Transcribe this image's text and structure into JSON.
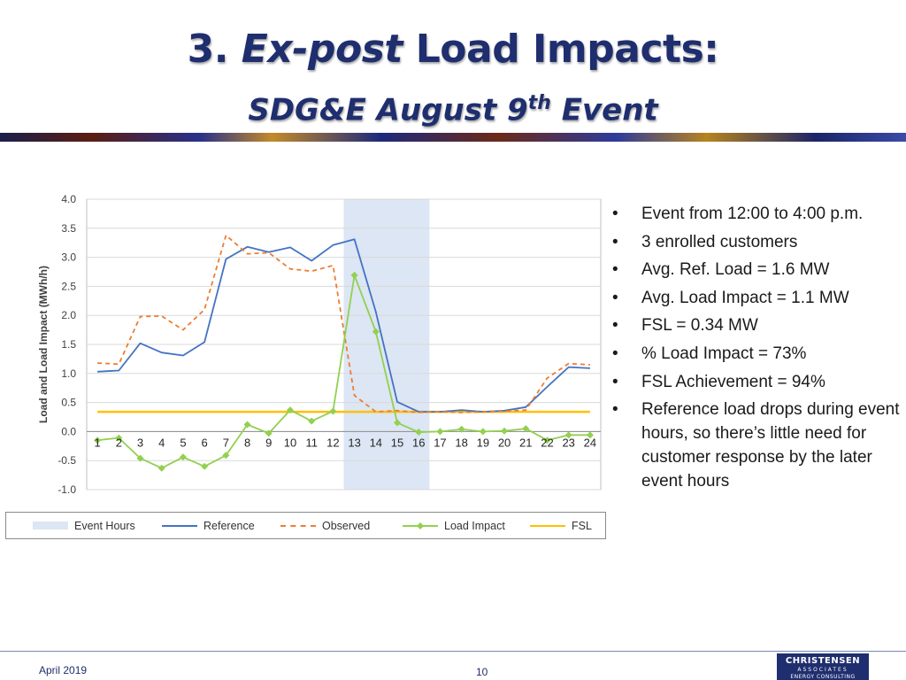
{
  "slide": {
    "title_prefix": "3. ",
    "title_em": "Ex-post",
    "title_suffix": " Load Impacts:",
    "subtitle_main": "SDG&E August 9",
    "subtitle_sup": "th",
    "subtitle_tail": " Event"
  },
  "bullets": [
    "Event from 12:00 to 4:00 p.m.",
    "3 enrolled customers",
    "Avg. Ref. Load = 1.6 MW",
    "Avg. Load Impact = 1.1 MW",
    "FSL = 0.34 MW",
    "% Load Impact = 73%",
    "FSL Achievement = 94%",
    "Reference load drops during event hours, so there’s little need for customer response by the later event hours"
  ],
  "bullet_glyph": "•",
  "footer": {
    "date": "April 2019",
    "page": "10",
    "logo_line1": "CHRISTENSEN",
    "logo_line2": "ASSOCIATES",
    "logo_line3": "ENERGY CONSULTING"
  },
  "chart_data": {
    "type": "line",
    "ylabel": "Load and Load Impact (MWh/h)",
    "xlabel": "",
    "ylim": [
      -1.0,
      4.0
    ],
    "yticks": [
      -1.0,
      -0.5,
      0.0,
      0.5,
      1.0,
      1.5,
      2.0,
      2.5,
      3.0,
      3.5,
      4.0
    ],
    "ytick_labels": [
      "-1.0",
      "-0.5",
      "0.0",
      "0.5",
      "1.0",
      "1.5",
      "2.0",
      "2.5",
      "3.0",
      "3.5",
      "4.0"
    ],
    "categories": [
      "1",
      "2",
      "3",
      "4",
      "5",
      "6",
      "7",
      "8",
      "9",
      "10",
      "11",
      "12",
      "13",
      "14",
      "15",
      "16",
      "17",
      "18",
      "19",
      "20",
      "21",
      "22",
      "23",
      "24"
    ],
    "grid": true,
    "event_hours": {
      "name": "Event Hours",
      "from": "13",
      "to": "16",
      "color": "#dce6f4"
    },
    "series": [
      {
        "name": "Reference",
        "style": "solid",
        "color": "#4472c4",
        "values": [
          1.03,
          1.05,
          1.52,
          1.36,
          1.31,
          1.54,
          2.97,
          3.18,
          3.09,
          3.17,
          2.94,
          3.21,
          3.31,
          2.06,
          0.51,
          0.34,
          0.34,
          0.37,
          0.34,
          0.36,
          0.42,
          0.77,
          1.11,
          1.09
        ]
      },
      {
        "name": "Observed",
        "style": "dashed",
        "color": "#ed7d31",
        "values": [
          1.18,
          1.16,
          1.98,
          1.99,
          1.75,
          2.1,
          3.38,
          3.06,
          3.08,
          2.8,
          2.76,
          2.86,
          0.62,
          0.34,
          0.36,
          0.33,
          0.34,
          0.33,
          0.34,
          0.35,
          0.37,
          0.92,
          1.17,
          1.15
        ]
      },
      {
        "name": "Load Impact",
        "style": "solid-marker",
        "color": "#92d050",
        "values": [
          -0.15,
          -0.11,
          -0.46,
          -0.63,
          -0.44,
          -0.6,
          -0.41,
          0.12,
          -0.03,
          0.37,
          0.18,
          0.35,
          2.69,
          1.72,
          0.15,
          -0.01,
          0.0,
          0.04,
          0.0,
          0.01,
          0.05,
          -0.15,
          -0.06,
          -0.06
        ]
      },
      {
        "name": "FSL",
        "style": "solid",
        "color": "#ffc000",
        "values": [
          0.34,
          0.34,
          0.34,
          0.34,
          0.34,
          0.34,
          0.34,
          0.34,
          0.34,
          0.34,
          0.34,
          0.34,
          0.34,
          0.34,
          0.34,
          0.34,
          0.34,
          0.34,
          0.34,
          0.34,
          0.34,
          0.34,
          0.34,
          0.34
        ]
      }
    ],
    "legend_placement": "bottom"
  }
}
